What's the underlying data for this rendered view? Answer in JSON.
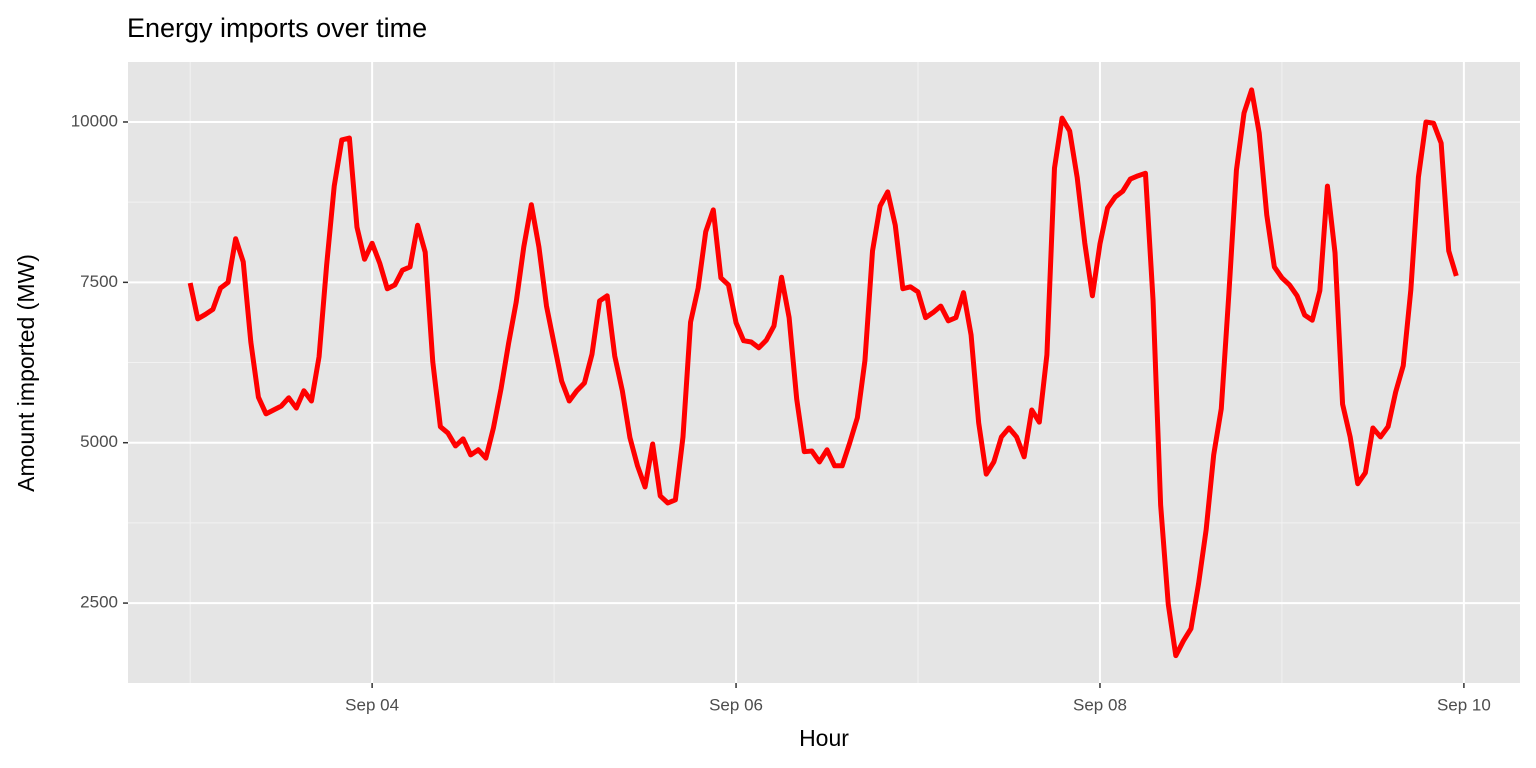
{
  "chart_data": {
    "type": "line",
    "title": "Energy imports over time",
    "x_label": "Hour",
    "y_label": "Amount imported (MW)",
    "x": [
      0,
      1,
      2,
      3,
      4,
      5,
      6,
      7,
      8,
      9,
      10,
      11,
      12,
      13,
      14,
      15,
      16,
      17,
      18,
      19,
      20,
      21,
      22,
      23,
      24,
      25,
      26,
      27,
      28,
      29,
      30,
      31,
      32,
      33,
      34,
      35,
      36,
      37,
      38,
      39,
      40,
      41,
      42,
      43,
      44,
      45,
      46,
      47,
      48,
      49,
      50,
      51,
      52,
      53,
      54,
      55,
      56,
      57,
      58,
      59,
      60,
      61,
      62,
      63,
      64,
      65,
      66,
      67,
      68,
      69,
      70,
      71,
      72,
      73,
      74,
      75,
      76,
      77,
      78,
      79,
      80,
      81,
      82,
      83,
      84,
      85,
      86,
      87,
      88,
      89,
      90,
      91,
      92,
      93,
      94,
      95,
      96,
      97,
      98,
      99,
      100,
      101,
      102,
      103,
      104,
      105,
      106,
      107,
      108,
      109,
      110,
      111,
      112,
      113,
      114,
      115,
      116,
      117,
      118,
      119,
      120,
      121,
      122,
      123,
      124,
      125,
      126,
      127,
      128,
      129,
      130,
      131,
      132,
      133,
      134,
      135,
      136,
      137,
      138,
      139,
      140,
      141,
      142,
      143,
      144,
      145,
      146,
      147,
      148,
      149,
      150,
      151,
      152,
      153,
      154,
      155,
      156,
      157,
      158,
      159,
      160,
      161,
      162,
      163,
      164,
      165,
      166,
      167
    ],
    "series": [
      {
        "name": "Amount imported (MW)",
        "color": "#ff0000",
        "values": [
          7490,
          6930,
          7000,
          7080,
          7410,
          7500,
          8180,
          7820,
          6570,
          5710,
          5450,
          5510,
          5570,
          5700,
          5540,
          5810,
          5650,
          6340,
          7770,
          9000,
          9720,
          9750,
          8360,
          7860,
          8110,
          7800,
          7400,
          7460,
          7690,
          7740,
          8390,
          7970,
          6260,
          5250,
          5150,
          4950,
          5060,
          4810,
          4890,
          4760,
          5230,
          5840,
          6550,
          7190,
          8050,
          8710,
          8050,
          7130,
          6540,
          5960,
          5650,
          5810,
          5930,
          6380,
          7210,
          7290,
          6350,
          5810,
          5080,
          4640,
          4310,
          4980,
          4170,
          4060,
          4110,
          5090,
          6880,
          7410,
          8290,
          8630,
          7570,
          7460,
          6870,
          6590,
          6570,
          6480,
          6600,
          6820,
          7580,
          6950,
          5680,
          4860,
          4870,
          4700,
          4890,
          4640,
          4640,
          5000,
          5390,
          6280,
          7990,
          8690,
          8910,
          8390,
          7400,
          7430,
          7350,
          6950,
          7030,
          7130,
          6900,
          6950,
          7340,
          6680,
          5310,
          4510,
          4700,
          5090,
          5230,
          5090,
          4780,
          5510,
          5320,
          6370,
          9280,
          10060,
          9860,
          9130,
          8110,
          7290,
          8100,
          8660,
          8830,
          8920,
          9110,
          9160,
          9200,
          7220,
          4030,
          2490,
          1680,
          1910,
          2100,
          2800,
          3640,
          4810,
          5530,
          7320,
          9250,
          10140,
          10500,
          9830,
          8550,
          7740,
          7570,
          7460,
          7290,
          6990,
          6910,
          7370,
          9000,
          7960,
          5600,
          5090,
          4360,
          4530,
          5230,
          5090,
          5250,
          5790,
          6200,
          7380,
          9140,
          10000,
          9980,
          9670,
          7990,
          7600
        ]
      }
    ],
    "xlim": [
      -8.2,
      175.4
    ],
    "xticks": [
      {
        "value": 24,
        "label": "Sep 04"
      },
      {
        "value": 72,
        "label": "Sep 06"
      },
      {
        "value": 120,
        "label": "Sep 08"
      },
      {
        "value": 168,
        "label": "Sep 10"
      }
    ],
    "ylim": [
      1254,
      10935
    ],
    "yticks": [
      2500,
      5000,
      7500,
      10000
    ],
    "grid": true
  }
}
